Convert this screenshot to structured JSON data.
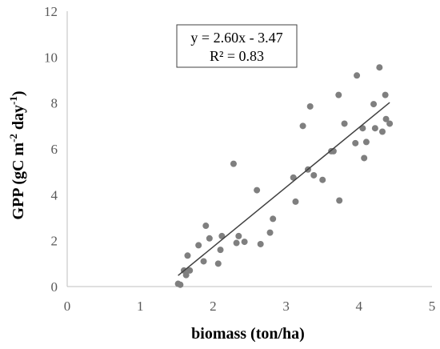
{
  "chart_data": {
    "type": "scatter",
    "xlabel": "biomass (ton/ha)",
    "ylabel": "GPP (gC m-2 day-1)",
    "ylabel_parts": {
      "pre": "GPP (gC m",
      "sup1": "-2",
      "mid": " day",
      "sup2": "-1",
      "post": ")"
    },
    "xlim": [
      0,
      5
    ],
    "ylim": [
      0,
      12
    ],
    "x_ticks": [
      "0",
      "1",
      "2",
      "3",
      "4",
      "5"
    ],
    "y_ticks": [
      "0",
      "2",
      "4",
      "6",
      "8",
      "10",
      "12"
    ],
    "grid": false,
    "legend": "none",
    "marker_color": "#7f7f7f",
    "line_color": "#404040",
    "annotation": {
      "equation": "y = 2.60x - 3.47",
      "r2": "R² = 0.83"
    },
    "trendline": {
      "slope": 2.6,
      "intercept": -3.47,
      "x_range": [
        1.52,
        4.42
      ]
    },
    "points": [
      [
        1.52,
        0.12
      ],
      [
        1.55,
        0.08
      ],
      [
        1.6,
        0.7
      ],
      [
        1.63,
        0.5
      ],
      [
        1.65,
        1.35
      ],
      [
        1.68,
        0.7
      ],
      [
        1.8,
        1.8
      ],
      [
        1.87,
        1.1
      ],
      [
        1.9,
        2.65
      ],
      [
        1.95,
        2.1
      ],
      [
        2.07,
        1.0
      ],
      [
        2.1,
        1.6
      ],
      [
        2.12,
        2.2
      ],
      [
        2.28,
        5.35
      ],
      [
        2.32,
        1.9
      ],
      [
        2.35,
        2.2
      ],
      [
        2.43,
        1.95
      ],
      [
        2.6,
        4.2
      ],
      [
        2.65,
        1.85
      ],
      [
        2.78,
        2.35
      ],
      [
        2.82,
        2.95
      ],
      [
        3.1,
        4.75
      ],
      [
        3.13,
        3.7
      ],
      [
        3.23,
        7.0
      ],
      [
        3.3,
        5.1
      ],
      [
        3.33,
        7.85
      ],
      [
        3.38,
        4.85
      ],
      [
        3.5,
        4.65
      ],
      [
        3.62,
        5.9
      ],
      [
        3.65,
        5.9
      ],
      [
        3.72,
        8.35
      ],
      [
        3.73,
        3.75
      ],
      [
        3.8,
        7.1
      ],
      [
        3.95,
        6.25
      ],
      [
        3.97,
        9.2
      ],
      [
        4.05,
        6.9
      ],
      [
        4.07,
        5.6
      ],
      [
        4.1,
        6.3
      ],
      [
        4.2,
        7.95
      ],
      [
        4.22,
        6.9
      ],
      [
        4.28,
        9.55
      ],
      [
        4.32,
        6.75
      ],
      [
        4.36,
        8.35
      ],
      [
        4.37,
        7.3
      ],
      [
        4.42,
        7.1
      ]
    ]
  }
}
